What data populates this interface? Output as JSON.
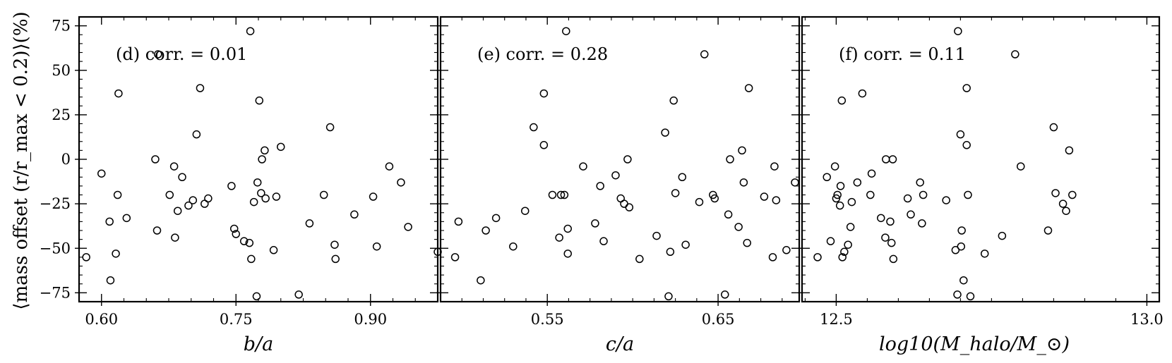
{
  "ylabel": "⟨mass offset (r/r_max < 0.2)⟩(%)",
  "chart_data": [
    {
      "type": "scatter",
      "annotation": "(d) corr. = 0.01",
      "xlabel": "b/a",
      "xlim": [
        0.575,
        0.975
      ],
      "ylim": [
        -80,
        80
      ],
      "x_ticks": [
        0.6,
        0.75,
        0.9
      ],
      "x_ticklabels": [
        "0.60",
        "0.75",
        "0.90"
      ],
      "y_ticks": [
        -75,
        -50,
        -25,
        0,
        25,
        50,
        75
      ],
      "y_ticklabels": [
        "−75",
        "−50",
        "−25",
        "0",
        "25",
        "50",
        "75"
      ],
      "points": [
        [
          0.583,
          -55
        ],
        [
          0.6,
          -8
        ],
        [
          0.609,
          -35
        ],
        [
          0.61,
          -68
        ],
        [
          0.616,
          -53
        ],
        [
          0.618,
          -20
        ],
        [
          0.619,
          37
        ],
        [
          0.628,
          -33
        ],
        [
          0.66,
          0
        ],
        [
          0.662,
          -40
        ],
        [
          0.663,
          59
        ],
        [
          0.676,
          -20
        ],
        [
          0.681,
          -4
        ],
        [
          0.682,
          -44
        ],
        [
          0.685,
          -29
        ],
        [
          0.69,
          -10
        ],
        [
          0.697,
          -26
        ],
        [
          0.702,
          -23
        ],
        [
          0.706,
          14
        ],
        [
          0.71,
          40
        ],
        [
          0.715,
          -25
        ],
        [
          0.719,
          -22
        ],
        [
          0.745,
          -15
        ],
        [
          0.748,
          -39
        ],
        [
          0.75,
          -42
        ],
        [
          0.759,
          -46
        ],
        [
          0.765,
          -47
        ],
        [
          0.766,
          72
        ],
        [
          0.767,
          -56
        ],
        [
          0.77,
          -24
        ],
        [
          0.773,
          -77
        ],
        [
          0.774,
          -13
        ],
        [
          0.776,
          33
        ],
        [
          0.778,
          -19
        ],
        [
          0.779,
          0
        ],
        [
          0.782,
          5
        ],
        [
          0.783,
          -22
        ],
        [
          0.792,
          -51
        ],
        [
          0.795,
          -21
        ],
        [
          0.8,
          7
        ],
        [
          0.82,
          -76
        ],
        [
          0.832,
          -36
        ],
        [
          0.848,
          -20
        ],
        [
          0.855,
          18
        ],
        [
          0.86,
          -48
        ],
        [
          0.861,
          -56
        ],
        [
          0.882,
          -31
        ],
        [
          0.903,
          -21
        ],
        [
          0.907,
          -49
        ],
        [
          0.921,
          -4
        ],
        [
          0.934,
          -13
        ],
        [
          0.942,
          -38
        ],
        [
          0.975,
          -52
        ]
      ]
    },
    {
      "type": "scatter",
      "annotation": "(e) corr. = 0.28",
      "xlabel": "c/a",
      "xlim": [
        0.4875,
        0.6975
      ],
      "ylim": [
        -80,
        80
      ],
      "x_ticks": [
        0.55,
        0.65
      ],
      "x_ticklabels": [
        "0.55",
        "0.65"
      ],
      "y_ticks": [
        -75,
        -50,
        -25,
        0,
        25,
        50,
        75
      ],
      "y_ticklabels": [],
      "points": [
        [
          0.496,
          -55
        ],
        [
          0.498,
          -35
        ],
        [
          0.511,
          -68
        ],
        [
          0.514,
          -40
        ],
        [
          0.52,
          -33
        ],
        [
          0.53,
          -49
        ],
        [
          0.537,
          -29
        ],
        [
          0.542,
          18
        ],
        [
          0.548,
          37
        ],
        [
          0.548,
          8
        ],
        [
          0.553,
          -20
        ],
        [
          0.557,
          -44
        ],
        [
          0.558,
          -20
        ],
        [
          0.56,
          -20
        ],
        [
          0.561,
          72
        ],
        [
          0.562,
          -39
        ],
        [
          0.562,
          -53
        ],
        [
          0.571,
          -4
        ],
        [
          0.578,
          -36
        ],
        [
          0.581,
          -15
        ],
        [
          0.583,
          -46
        ],
        [
          0.59,
          -9
        ],
        [
          0.593,
          -22
        ],
        [
          0.595,
          -25
        ],
        [
          0.597,
          0
        ],
        [
          0.598,
          -27
        ],
        [
          0.604,
          -56
        ],
        [
          0.614,
          -43
        ],
        [
          0.619,
          15
        ],
        [
          0.621,
          -77
        ],
        [
          0.622,
          -52
        ],
        [
          0.624,
          33
        ],
        [
          0.625,
          -19
        ],
        [
          0.629,
          -10
        ],
        [
          0.631,
          -48
        ],
        [
          0.639,
          -24
        ],
        [
          0.642,
          59
        ],
        [
          0.647,
          -20
        ],
        [
          0.648,
          -22
        ],
        [
          0.654,
          -76
        ],
        [
          0.656,
          -31
        ],
        [
          0.657,
          0
        ],
        [
          0.662,
          -38
        ],
        [
          0.664,
          5
        ],
        [
          0.665,
          -13
        ],
        [
          0.667,
          -47
        ],
        [
          0.668,
          40
        ],
        [
          0.677,
          -21
        ],
        [
          0.682,
          -55
        ],
        [
          0.683,
          -4
        ],
        [
          0.684,
          -23
        ],
        [
          0.69,
          -51
        ],
        [
          0.695,
          -13
        ]
      ]
    },
    {
      "type": "scatter",
      "annotation": "(f) corr. = 0.11",
      "xlabel": "log10(M_halo/M_⊙)",
      "xlim": [
        12.445,
        13.02
      ],
      "ylim": [
        -80,
        80
      ],
      "x_ticks": [
        12.5,
        13.0
      ],
      "x_ticklabels": [
        "12.5",
        "13.0"
      ],
      "y_ticks": [
        -75,
        -50,
        -25,
        0,
        25,
        50,
        75
      ],
      "y_ticklabels": [],
      "points": [
        [
          12.47,
          -55
        ],
        [
          12.485,
          -10
        ],
        [
          12.491,
          -46
        ],
        [
          12.498,
          -4
        ],
        [
          12.5,
          -22
        ],
        [
          12.502,
          -20
        ],
        [
          12.506,
          -26
        ],
        [
          12.507,
          -15
        ],
        [
          12.509,
          33
        ],
        [
          12.51,
          -55
        ],
        [
          12.513,
          -52
        ],
        [
          12.519,
          -48
        ],
        [
          12.523,
          -38
        ],
        [
          12.525,
          -24
        ],
        [
          12.534,
          -13
        ],
        [
          12.542,
          37
        ],
        [
          12.555,
          -20
        ],
        [
          12.557,
          -8
        ],
        [
          12.572,
          -33
        ],
        [
          12.579,
          -44
        ],
        [
          12.58,
          0
        ],
        [
          12.587,
          -35
        ],
        [
          12.589,
          -47
        ],
        [
          12.591,
          0
        ],
        [
          12.592,
          -56
        ],
        [
          12.615,
          -22
        ],
        [
          12.62,
          -31
        ],
        [
          12.635,
          -13
        ],
        [
          12.638,
          -36
        ],
        [
          12.64,
          -20
        ],
        [
          12.677,
          -23
        ],
        [
          12.692,
          -51
        ],
        [
          12.695,
          -76
        ],
        [
          12.696,
          72
        ],
        [
          12.701,
          -49
        ],
        [
          12.702,
          -40
        ],
        [
          12.705,
          -68
        ],
        [
          12.71,
          8
        ],
        [
          12.712,
          -20
        ],
        [
          12.716,
          -77
        ],
        [
          12.71,
          40
        ],
        [
          12.7,
          14
        ],
        [
          12.739,
          -53
        ],
        [
          12.767,
          -43
        ],
        [
          12.788,
          59
        ],
        [
          12.797,
          -4
        ],
        [
          12.841,
          -40
        ],
        [
          12.853,
          -19
        ],
        [
          12.85,
          18
        ],
        [
          12.865,
          -25
        ],
        [
          12.87,
          -29
        ],
        [
          12.875,
          5
        ],
        [
          12.88,
          -20
        ]
      ]
    }
  ]
}
